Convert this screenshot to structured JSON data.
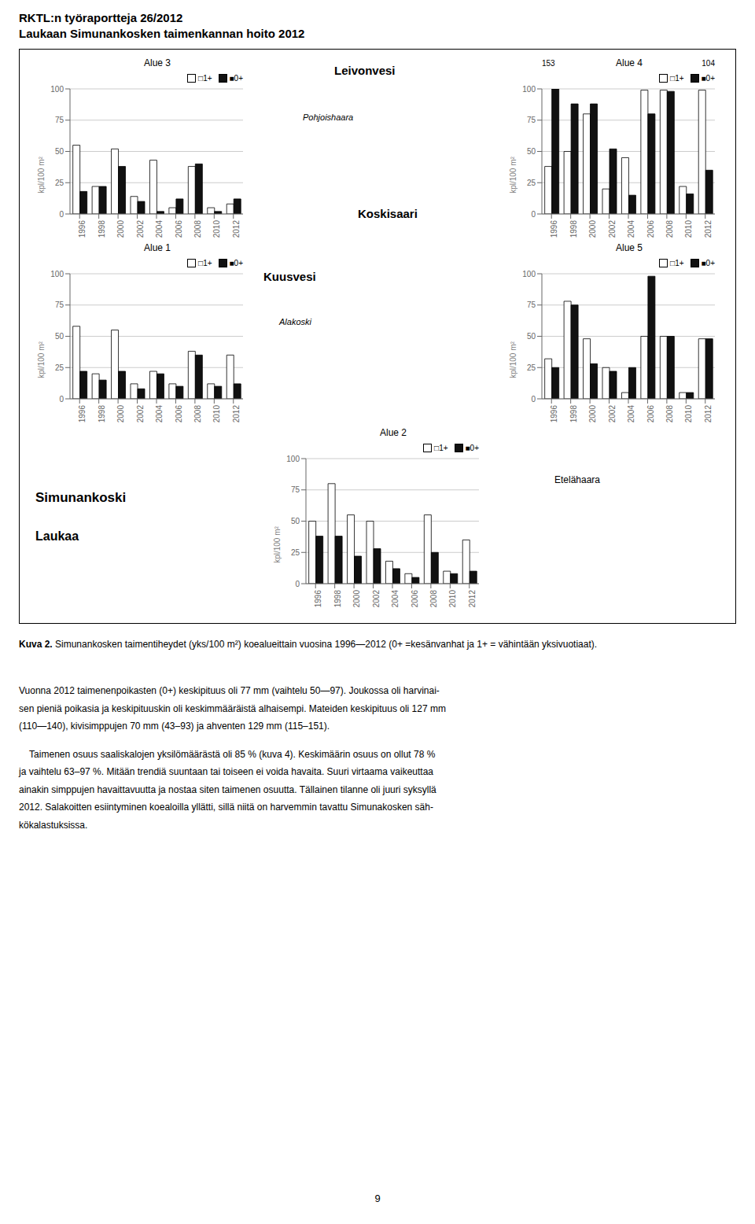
{
  "title": "RKTL:n työraportteja 26/2012",
  "subtitle": "Laukaan Simunankosken taimenkannan hoito 2012",
  "annotations": [
    "Leivonvesi",
    "Pohjoishaara",
    "Kuusvesi",
    "Alakoski",
    "Koskisaari",
    "Etelähaara",
    "Simunankoski",
    "Laukaa",
    "Kuva 2.",
    " Simunankosken taimentiheydet (yks/100 m²) koealueittain vuosina 1996—2012 (0+ =kesänvanhat ja 1+ = vähintään yksivuotiaat).",
    "Vuonna 2012 taimenenpoikasten (0+) keskipituus oli 77 mm (vaihtelu 50—97). Joukossa oli harvinai-",
    "sen pieniä poikasia ja keskipituuskin oli keskimmääräistä alhaisempi. Mateiden keskipituus oli 127 mm",
    "(110—140), kivisimppujen 70 mm (43–93) ja ahventen 129 mm (115–151).",
    "    Taimenen osuus saaliskalojen yksilömäärästä oli 85 % (kuva 4). Keskimäärin osuus on ollut 78 %",
    "ja vaihtelu 63–97 %. Mitään trendiä suuntaan tai toiseen ei voida havaita. Suuri virtaama vaikeuttaa",
    "ainakin simppujen havaittavuutta ja nostaa siten taimenen osuutta. Tällainen tilanne oli juuri syksyllä",
    "2012. Salakoitten esiintyminen koealoilla yllätti, sillä niitä on harvemmin tavattu Simunakosken säh-",
    "kökalastuksissa.",
    "9"
  ],
  "chart_data": [
    {
      "type": "bar",
      "title": "Alue 3",
      "categories": [
        "1996",
        "1998",
        "2000",
        "2002",
        "2004",
        "2006",
        "2008",
        "2010",
        "2012"
      ],
      "series": [
        {
          "name": "□1+",
          "color": "#ffffff",
          "values": [
            55,
            22,
            52,
            14,
            43,
            5,
            38,
            5,
            8
          ]
        },
        {
          "name": "■0+",
          "color": "#111111",
          "values": [
            18,
            22,
            38,
            10,
            2,
            12,
            40,
            2,
            12
          ]
        }
      ],
      "y_label": "kpl/100 m²",
      "ylim": [
        0,
        100
      ],
      "yticks": [
        0,
        25,
        50,
        75,
        100
      ],
      "grid": true,
      "legend": "upper right"
    },
    {
      "type": "bar",
      "title": "Alue 4",
      "categories": [
        "1996",
        "1998",
        "2000",
        "2002",
        "2004",
        "2006",
        "2008",
        "2010",
        "2012"
      ],
      "series": [
        {
          "name": "□1+",
          "color": "#ffffff",
          "values": [
            38,
            50,
            80,
            20,
            45,
            99,
            99,
            22,
            99
          ]
        },
        {
          "name": "■0+",
          "color": "#111111",
          "values": [
            100,
            88,
            88,
            52,
            15,
            80,
            98,
            16,
            35
          ]
        }
      ],
      "y_label": "kpl/100 m²",
      "ylim": [
        0,
        100
      ],
      "yticks": [
        0,
        25,
        50,
        75,
        100
      ],
      "grid": true,
      "legend": "upper right",
      "annotations": [
        "153",
        "104"
      ]
    },
    {
      "type": "bar",
      "title": "Alue 5",
      "categories": [
        "1996",
        "1998",
        "2000",
        "2002",
        "2004",
        "2006",
        "2008",
        "2010",
        "2012"
      ],
      "series": [
        {
          "name": "□1+",
          "color": "#ffffff",
          "values": [
            32,
            78,
            48,
            25,
            5,
            50,
            50,
            5,
            48
          ]
        },
        {
          "name": "■0+",
          "color": "#111111",
          "values": [
            25,
            75,
            28,
            22,
            25,
            98,
            50,
            5,
            48
          ]
        }
      ],
      "y_label": "kpl/100 m²",
      "ylim": [
        0,
        100
      ],
      "yticks": [
        0,
        25,
        50,
        75,
        100
      ],
      "grid": true,
      "legend": "upper right"
    },
    {
      "type": "bar",
      "title": "Alue 1",
      "categories": [
        "1996",
        "1998",
        "2000",
        "2002",
        "2004",
        "2006",
        "2008",
        "2010",
        "2012"
      ],
      "series": [
        {
          "name": "□1+",
          "color": "#ffffff",
          "values": [
            58,
            20,
            55,
            12,
            22,
            12,
            38,
            12,
            35
          ]
        },
        {
          "name": "■0+",
          "color": "#111111",
          "values": [
            22,
            15,
            22,
            8,
            20,
            10,
            35,
            10,
            12
          ]
        }
      ],
      "y_label": "kpl/100 m²",
      "ylim": [
        0,
        100
      ],
      "yticks": [
        0,
        25,
        50,
        75,
        100
      ],
      "grid": true,
      "legend": "upper right"
    },
    {
      "type": "bar",
      "title": "Alue 2",
      "categories": [
        "1996",
        "1998",
        "2000",
        "2002",
        "2004",
        "2006",
        "2008",
        "2010",
        "2012"
      ],
      "series": [
        {
          "name": "□1+",
          "color": "#ffffff",
          "values": [
            50,
            80,
            55,
            50,
            18,
            8,
            55,
            10,
            35
          ]
        },
        {
          "name": "■0+",
          "color": "#111111",
          "values": [
            38,
            38,
            22,
            28,
            12,
            5,
            25,
            8,
            10
          ]
        }
      ],
      "y_label": "kpl/100 m²",
      "ylim": [
        0,
        100
      ],
      "yticks": [
        0,
        25,
        50,
        75,
        100
      ],
      "grid": true,
      "legend": "upper right"
    }
  ]
}
